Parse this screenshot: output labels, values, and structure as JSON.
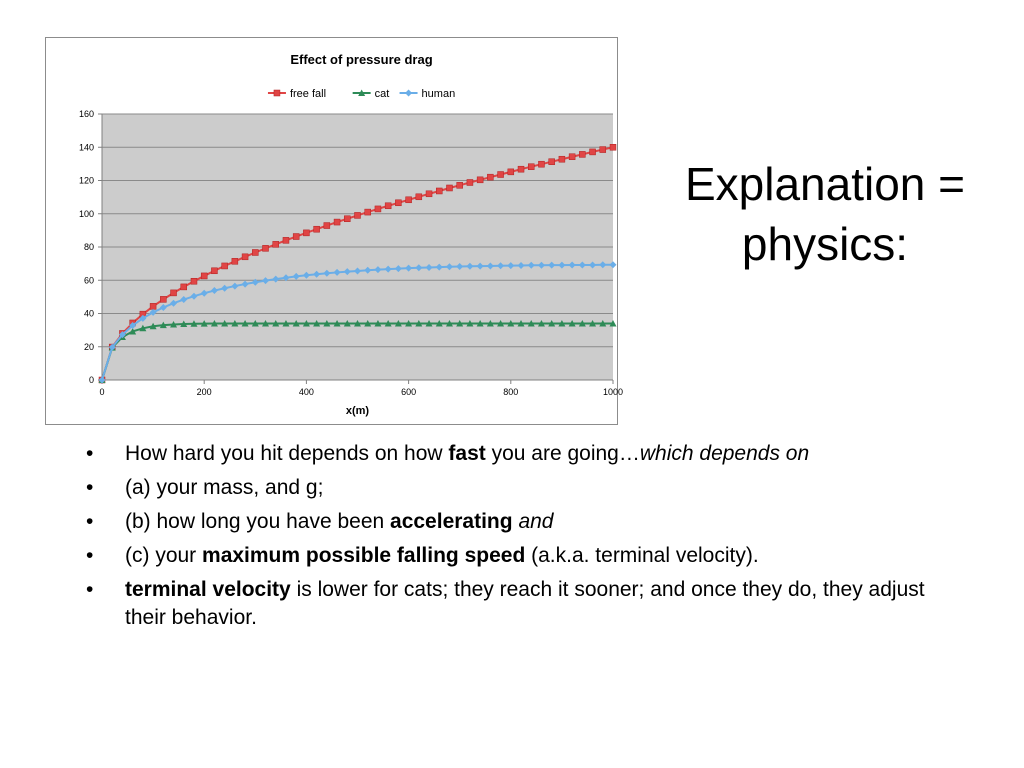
{
  "slide": {
    "title_line1": "Explanation =",
    "title_line2": "physics:",
    "bullets": [
      [
        {
          "t": "How hard you hit depends on how "
        },
        {
          "t": "fast",
          "b": true
        },
        {
          "t": " you are going…"
        },
        {
          "t": "which depends on",
          "i": true
        }
      ],
      [
        {
          "t": "(a) your mass, and g;"
        }
      ],
      [
        {
          "t": "(b) how long you have been "
        },
        {
          "t": "accelerating",
          "b": true
        },
        {
          "t": " "
        },
        {
          "t": "and",
          "i": true
        }
      ],
      [
        {
          "t": "(c) your "
        },
        {
          "t": "maximum possible falling speed",
          "b": true
        },
        {
          "t": " (a.k.a. terminal velocity)."
        }
      ],
      [
        {
          "t": "terminal velocity",
          "b": true
        },
        {
          "t": " is lower for cats; they reach it sooner; and once they do, they adjust their behavior."
        }
      ]
    ]
  },
  "chart_data": {
    "type": "line",
    "title": "Effect of pressure drag",
    "xlabel": "x(m)",
    "ylabel": "",
    "xlim": [
      0,
      1000
    ],
    "ylim": [
      0,
      160
    ],
    "xticks": [
      0,
      200,
      400,
      600,
      800,
      1000
    ],
    "yticks": [
      0,
      20,
      40,
      60,
      80,
      100,
      120,
      140,
      160
    ],
    "grid": true,
    "legend_position": "top",
    "plot_background": "#cccccc",
    "x": [
      0,
      20,
      40,
      60,
      80,
      100,
      120,
      140,
      160,
      180,
      200,
      220,
      240,
      260,
      280,
      300,
      320,
      340,
      360,
      380,
      400,
      420,
      440,
      460,
      480,
      500,
      520,
      540,
      560,
      580,
      600,
      620,
      640,
      660,
      680,
      700,
      720,
      740,
      760,
      780,
      800,
      820,
      840,
      860,
      880,
      900,
      920,
      940,
      960,
      980,
      1000
    ],
    "series": [
      {
        "name": "free fall",
        "color": "#e04545",
        "marker": "square",
        "values": [
          0,
          19.8,
          28.0,
          34.3,
          39.6,
          44.3,
          48.5,
          52.4,
          56.0,
          59.4,
          62.6,
          65.7,
          68.6,
          71.4,
          74.1,
          76.7,
          79.2,
          81.6,
          84.0,
          86.3,
          88.5,
          90.7,
          92.9,
          95.0,
          97.0,
          99.0,
          101.0,
          102.9,
          104.8,
          106.6,
          108.4,
          110.2,
          112.0,
          113.7,
          115.5,
          117.1,
          118.8,
          120.4,
          122.0,
          123.6,
          125.2,
          126.8,
          128.3,
          129.8,
          131.3,
          132.8,
          134.3,
          135.7,
          137.2,
          138.6,
          140.0
        ]
      },
      {
        "name": "cat",
        "color": "#2e8b57",
        "marker": "triangle",
        "values": [
          0,
          19.5,
          25.9,
          29.2,
          31.1,
          32.3,
          33.0,
          33.4,
          33.7,
          33.85,
          33.93,
          33.96,
          33.98,
          33.99,
          34.0,
          34.0,
          34.0,
          34.0,
          34.0,
          34.0,
          34.0,
          34.0,
          34.0,
          34.0,
          34.0,
          34.0,
          34.0,
          34.0,
          34.0,
          34.0,
          34.0,
          34.0,
          34.0,
          34.0,
          34.0,
          34.0,
          34.0,
          34.0,
          34.0,
          34.0,
          34.0,
          34.0,
          34.0,
          34.0,
          34.0,
          34.0,
          34.0,
          34.0,
          34.0,
          34.0,
          34.0
        ]
      },
      {
        "name": "human",
        "color": "#6aaee8",
        "marker": "diamond",
        "values": [
          0,
          19.7,
          27.3,
          32.8,
          37.1,
          40.7,
          43.6,
          46.2,
          48.4,
          50.4,
          52.2,
          53.8,
          55.2,
          56.5,
          57.7,
          58.8,
          59.8,
          60.7,
          61.5,
          62.3,
          63.0,
          63.6,
          64.2,
          64.7,
          65.2,
          65.6,
          66.0,
          66.4,
          66.7,
          67.0,
          67.3,
          67.5,
          67.7,
          67.9,
          68.1,
          68.3,
          68.4,
          68.5,
          68.6,
          68.7,
          68.8,
          68.9,
          69.0,
          69.0,
          69.1,
          69.1,
          69.2,
          69.2,
          69.2,
          69.3,
          69.3
        ]
      }
    ]
  }
}
